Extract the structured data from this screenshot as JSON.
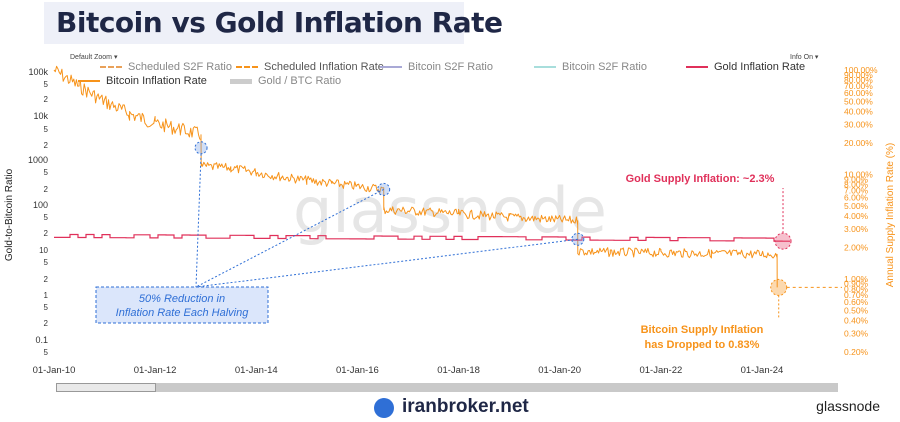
{
  "title": "Bitcoin vs Gold Inflation Rate",
  "ui": {
    "zoom_label": "Default Zoom",
    "info_label": "Info On"
  },
  "legend": [
    {
      "label": "Scheduled S2F Ratio",
      "color": "#e9a15a",
      "style": "dash"
    },
    {
      "label": "Scheduled Inflation Rate",
      "color": "#f7931a",
      "style": "dash"
    },
    {
      "label": "Bitcoin S2F Ratio",
      "color": "#a9a9d6",
      "style": "solid"
    },
    {
      "label": "Bitcoin S2F Ratio",
      "color": "#a8dedc",
      "style": "solid"
    },
    {
      "label": "Gold Inflation Rate",
      "color": "#e0305a",
      "style": "solid"
    },
    {
      "label": "Bitcoin Inflation Rate",
      "color": "#f7931a",
      "style": "solid"
    },
    {
      "label": "Gold / BTC Ratio",
      "color": "#cccccc",
      "style": "thick"
    }
  ],
  "chart_data": {
    "type": "line",
    "xlabel": "",
    "ylabel": "Gold-to-Bitcoin Ratio",
    "ylabel_right": "Annual Supply Inflation Rate (%)",
    "x_ticks": [
      "01-Jan-10",
      "01-Jan-12",
      "01-Jan-14",
      "01-Jan-16",
      "01-Jan-18",
      "01-Jan-20",
      "01-Jan-22",
      "01-Jan-24"
    ],
    "left_ticks": [
      "100k",
      "5",
      "2",
      "10k",
      "5",
      "2",
      "1000",
      "5",
      "2",
      "100",
      "5",
      "2",
      "10",
      "5",
      "2",
      "1",
      "5",
      "2",
      "0.1",
      "5"
    ],
    "right_ticks": [
      "100.00%",
      "90.00%",
      "80.00%",
      "70.00%",
      "60.00%",
      "50.00%",
      "40.00%",
      "30.00%",
      "20.00%",
      "10.00%",
      "9.00%",
      "8.00%",
      "7.00%",
      "6.00%",
      "5.00%",
      "4.00%",
      "3.00%",
      "2.00%",
      "1.00%",
      "0.90%",
      "0.80%",
      "0.70%",
      "0.60%",
      "0.50%",
      "0.40%",
      "0.30%",
      "0.20%"
    ],
    "y_right_scale": "log",
    "y_right_range": [
      0.2,
      100
    ],
    "series": [
      {
        "name": "Bitcoin Inflation Rate",
        "color": "#f7931a",
        "x": [
          "2010-01-01",
          "2010-07-01",
          "2011-01-01",
          "2011-07-01",
          "2012-01-01",
          "2012-07-01",
          "2012-11-28",
          "2012-11-29",
          "2013-07-01",
          "2014-01-01",
          "2014-07-01",
          "2015-01-01",
          "2015-07-01",
          "2016-01-01",
          "2016-07-09",
          "2016-07-10",
          "2017-01-01",
          "2018-01-01",
          "2019-01-01",
          "2020-05-10",
          "2020-05-11",
          "2021-01-01",
          "2022-01-01",
          "2023-01-01",
          "2024-04-19",
          "2024-04-20"
        ],
        "y": [
          100,
          70,
          50,
          38,
          31,
          27,
          24,
          12,
          11.5,
          10.5,
          9.5,
          8.8,
          8.2,
          7.7,
          7.2,
          4.6,
          4.5,
          4.2,
          3.9,
          3.6,
          1.85,
          1.8,
          1.78,
          1.75,
          1.72,
          0.83
        ]
      },
      {
        "name": "Gold Inflation Rate",
        "color": "#e0305a",
        "x": [
          "2010-01-01",
          "2012-01-01",
          "2014-01-01",
          "2016-01-01",
          "2018-01-01",
          "2020-01-01",
          "2022-01-01",
          "2024-06-01"
        ],
        "y": [
          2.5,
          2.5,
          2.4,
          2.4,
          2.4,
          2.3,
          2.3,
          2.3
        ]
      }
    ],
    "annotations": [
      {
        "text": "50% Reduction in",
        "color": "#2f6fd6"
      },
      {
        "text": "Inflation Rate Each Halving",
        "color": "#2f6fd6"
      },
      {
        "text": "Gold Supply Inflation: ~2.3%",
        "color": "#e0305a"
      },
      {
        "text": "Bitcoin Supply Inflation",
        "color": "#f7931a"
      },
      {
        "text": "has Dropped to 0.83%",
        "color": "#f7931a"
      }
    ],
    "watermark": "glassnode"
  },
  "footer": {
    "brand": "iranbroker.net",
    "source": "glassnode"
  }
}
